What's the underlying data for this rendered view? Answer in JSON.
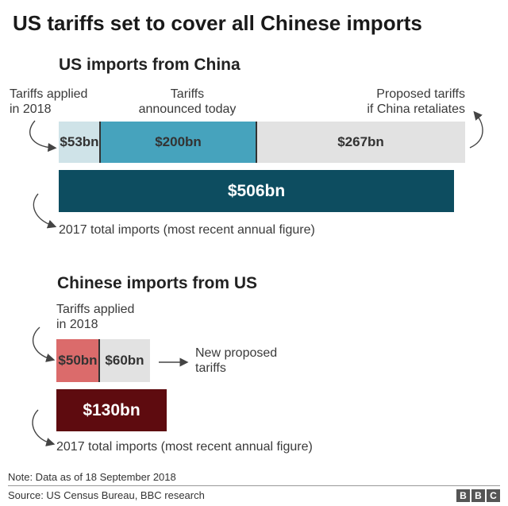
{
  "title": "US tariffs set to cover all Chinese imports",
  "chart_data": [
    {
      "type": "bar",
      "title": "US imports from China",
      "unit": "bn",
      "stacked_bar": [
        {
          "label": "$53bn",
          "value": 53,
          "annotation": "Tariffs applied\nin 2018",
          "color": "#cfe3e8"
        },
        {
          "label": "$200bn",
          "value": 200,
          "annotation": "Tariffs\nannounced today",
          "color": "#46a3bd"
        },
        {
          "label": "$267bn",
          "value": 267,
          "annotation": "Proposed tariffs\nif China retaliates",
          "color": "#e2e2e2"
        }
      ],
      "total_bar": {
        "label": "$506bn",
        "value": 506,
        "annotation": "2017 total imports (most recent annual figure)",
        "color": "#0d4d60"
      }
    },
    {
      "type": "bar",
      "title": "Chinese imports from US",
      "unit": "bn",
      "stacked_bar": [
        {
          "label": "$50bn",
          "value": 50,
          "annotation": "Tariffs applied\nin 2018",
          "color": "#db6b6b"
        },
        {
          "label": "$60bn",
          "value": 60,
          "annotation": "New proposed\ntariffs",
          "color": "#e2e2e2"
        }
      ],
      "total_bar": {
        "label": "$130bn",
        "value": 130,
        "annotation": "2017 total imports (most recent annual figure)",
        "color": "#5e0b0f"
      }
    }
  ],
  "footer": {
    "note": "Note: Data as of 18 September 2018",
    "source": "Source: US Census Bureau, BBC research",
    "logo_letters": [
      "B",
      "B",
      "C"
    ]
  }
}
